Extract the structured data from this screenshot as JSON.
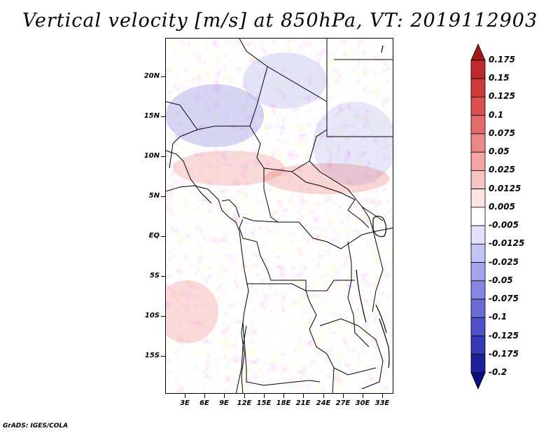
{
  "title": "Vertical velocity [m/s] at 850hPa, VT: 2019112903",
  "credit": "GrADS: IGES/COLA",
  "lat_labels": [
    "20N",
    "15N",
    "10N",
    "5N",
    "EQ",
    "5S",
    "10S",
    "15S"
  ],
  "lon_labels": [
    "3E",
    "6E",
    "9E",
    "12E",
    "15E",
    "18E",
    "21E",
    "24E",
    "27E",
    "30E",
    "33E"
  ],
  "colorbar": {
    "labels": [
      "0.175",
      "0.15",
      "0.125",
      "0.1",
      "0.075",
      "0.05",
      "0.025",
      "0.0125",
      "0.005",
      "-0.005",
      "-0.0125",
      "-0.025",
      "-0.05",
      "-0.075",
      "-0.1",
      "-0.125",
      "-0.175",
      "-0.2"
    ],
    "colors": [
      "#a11a1a",
      "#bc2a2a",
      "#cf3b3b",
      "#dd5050",
      "#e56a6a",
      "#ed8686",
      "#f3a4a4",
      "#f8c3c3",
      "#fce2e2",
      "#ffffff",
      "#e2e2fc",
      "#c3c3f6",
      "#a4a4ee",
      "#8686e4",
      "#6a6ad8",
      "#5050c8",
      "#3838b2",
      "#20209a",
      "#0c0c84"
    ]
  }
}
